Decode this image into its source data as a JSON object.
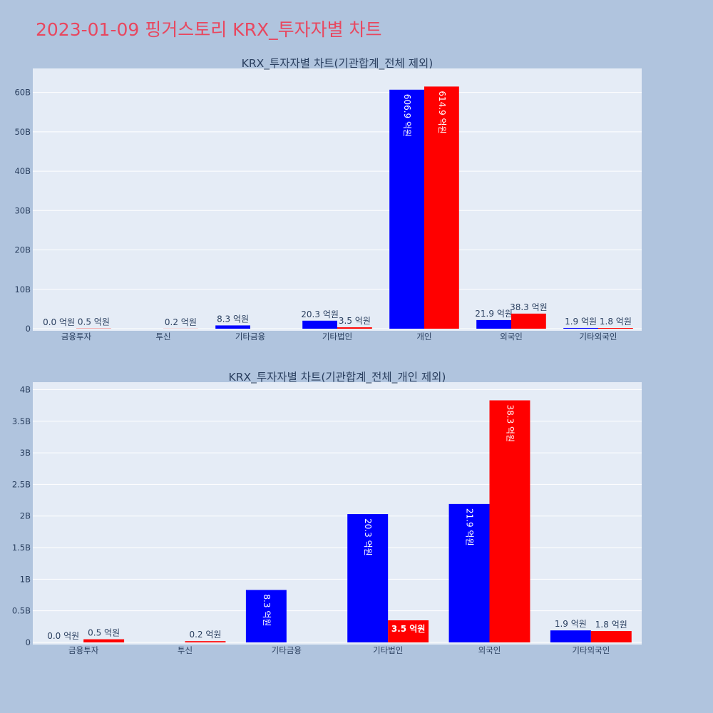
{
  "page": {
    "title": "2023-01-09 핑거스토리 KRX_투자자별 차트"
  },
  "colors": {
    "buy": "#0000ff",
    "sell": "#ff0000",
    "plot_bg": "#e5ecf6",
    "page_bg": "#b0c4de",
    "title": "#e8475f"
  },
  "chart_data": [
    {
      "type": "bar",
      "title": "KRX_투자자별 차트(기관합계_전체 제외)",
      "categories": [
        "금융투자",
        "투신",
        "기타금융",
        "기타법인",
        "개인",
        "외국인",
        "기타외국인"
      ],
      "series": [
        {
          "color": "#0000ff",
          "values": [
            0.0,
            null,
            830000000,
            2030000000,
            60690000000,
            2190000000,
            190000000
          ],
          "labels": [
            "0.0 억원",
            "",
            "8.3 억원",
            "20.3 억원",
            "606.9 억원",
            "21.9 억원",
            "1.9 억원"
          ]
        },
        {
          "color": "#ff0000",
          "values": [
            50000000,
            20000000,
            null,
            350000000,
            61490000000,
            3830000000,
            180000000
          ],
          "labels": [
            "0.5 억원",
            "0.2 억원",
            "",
            "3.5 억원",
            "614.9 억원",
            "38.3 억원",
            "1.8 억원"
          ]
        }
      ],
      "ylim": [
        0,
        65000000000
      ],
      "yticks": [
        0,
        10000000000,
        20000000000,
        30000000000,
        40000000000,
        50000000000,
        60000000000
      ],
      "ytick_labels": [
        "0",
        "10B",
        "20B",
        "30B",
        "40B",
        "50B",
        "60B"
      ],
      "grid": true
    },
    {
      "type": "bar",
      "title": "KRX_투자자별 차트(기관합계_전체_개인 제외)",
      "categories": [
        "금융투자",
        "투신",
        "기타금융",
        "기타법인",
        "외국인",
        "기타외국인"
      ],
      "series": [
        {
          "color": "#0000ff",
          "values": [
            0.0,
            null,
            830000000,
            2030000000,
            2190000000,
            190000000
          ],
          "labels": [
            "0.0 억원",
            "",
            "8.3 억원",
            "20.3 억원",
            "21.9 억원",
            "1.9 억원"
          ]
        },
        {
          "color": "#ff0000",
          "values": [
            50000000,
            20000000,
            null,
            350000000,
            3830000000,
            180000000
          ],
          "labels": [
            "0.5 억원",
            "0.2 억원",
            "",
            "3.5 억원",
            "38.3 억원",
            "1.8 억원"
          ]
        }
      ],
      "ylim": [
        0,
        4050000000
      ],
      "yticks": [
        0,
        500000000,
        1000000000,
        1500000000,
        2000000000,
        2500000000,
        3000000000,
        3500000000,
        4000000000
      ],
      "ytick_labels": [
        "0",
        "0.5B",
        "1B",
        "1.5B",
        "2B",
        "2.5B",
        "3B",
        "3.5B",
        "4B"
      ],
      "grid": true
    }
  ]
}
